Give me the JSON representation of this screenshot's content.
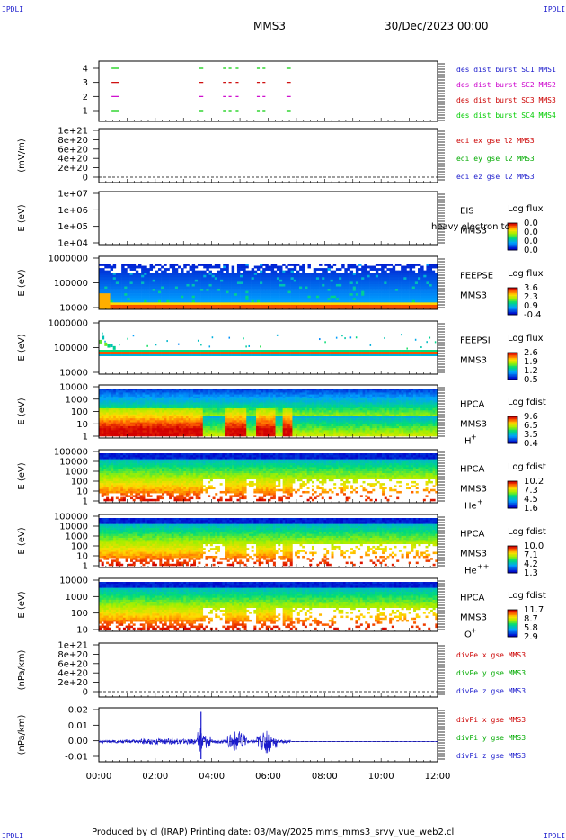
{
  "header": {
    "title": "MMS3",
    "date": "30/Dec/2023 00:00",
    "corner_left": "IPDLI",
    "corner_right": "IPDLI"
  },
  "footer": {
    "text": "Produced by cl (IRAP)   Printing date: 03/May/2025   mms_mms3_srvy_vue_web2.cl"
  },
  "colors": {
    "ticks_yellow": "#ffd700",
    "accent_blue": "#1a1acc"
  },
  "chart_data": {
    "type": "heatmap",
    "x_ticks": [
      "00:00",
      "02:00",
      "04:00",
      "06:00",
      "08:00",
      "10:00",
      "12:00"
    ],
    "xlim_hours": [
      0,
      12
    ],
    "panels": [
      {
        "id": "burst",
        "type": "timeline",
        "yticks": [
          "4",
          "3",
          "2",
          "1"
        ],
        "ylabel": "",
        "series": [
          {
            "name": "des dist burst SC1 MMS1",
            "color": "#00cc00",
            "level": 4
          },
          {
            "name": "des dist burst SC2 MMS2",
            "color": "#cc0000",
            "level": 3
          },
          {
            "name": "des dist burst SC3 MMS3",
            "color": "#cc00cc",
            "level": 2
          },
          {
            "name": "des dist burst SC4 MMS4",
            "color": "#00cc00",
            "level": 1
          }
        ],
        "label_colors": [
          "#1a1acc",
          "#cc00cc",
          "#cc0000",
          "#00cc00"
        ],
        "intervals_hours": [
          [
            0.45,
            0.7
          ],
          [
            3.55,
            3.7
          ],
          [
            4.4,
            4.5
          ],
          [
            4.6,
            4.7
          ],
          [
            4.85,
            4.95
          ],
          [
            5.6,
            5.7
          ],
          [
            5.8,
            5.9
          ],
          [
            6.65,
            6.8
          ]
        ]
      },
      {
        "id": "edi",
        "type": "line",
        "ylabel": "(mV/m)",
        "yticks": [
          "1e+21",
          "8e+20",
          "6e+20",
          "4e+20",
          "2e+20",
          "0"
        ],
        "series": [
          {
            "name": "edi ex gse l2 MMS3",
            "color": "#cc0000"
          },
          {
            "name": "edi ey gse l2 MMS3",
            "color": "#00aa00"
          },
          {
            "name": "edi ez gse l2 MMS3",
            "color": "#1a1acc"
          }
        ]
      },
      {
        "id": "eis",
        "type": "heatmap",
        "ylabel": "E (eV)",
        "yticks": [
          "1e+07",
          "1e+06",
          "1e+05",
          "1e+04"
        ],
        "instrument": "EIS",
        "spacecraft": "MMS3",
        "overlay_text": "heavy electron to",
        "colorbar": {
          "title": "Log flux",
          "values": [
            "0.0",
            "0.0",
            "0.0",
            "0.0"
          ]
        }
      },
      {
        "id": "feepse",
        "type": "heatmap",
        "ylabel": "E (eV)",
        "yticks": [
          "1000000",
          "100000",
          "10000"
        ],
        "instrument": "FEEPSE",
        "spacecraft": "MMS3",
        "colorbar": {
          "title": "Log flux",
          "values": [
            "3.6",
            "2.3",
            "0.9",
            "-0.4"
          ]
        }
      },
      {
        "id": "feepsi",
        "type": "heatmap",
        "ylabel": "E (eV)",
        "yticks": [
          "1000000",
          "100000",
          "10000"
        ],
        "instrument": "FEEPSI",
        "spacecraft": "MMS3",
        "colorbar": {
          "title": "Log flux",
          "values": [
            "2.6",
            "1.9",
            "1.2",
            "0.5"
          ]
        }
      },
      {
        "id": "hpca_h",
        "type": "heatmap",
        "ylabel": "E (eV)",
        "yticks": [
          "10000",
          "1000",
          "100",
          "10",
          "1"
        ],
        "instrument": "HPCA",
        "spacecraft": "MMS3",
        "species": "H",
        "species_sup": "+",
        "colorbar": {
          "title": "Log fdist",
          "values": [
            "9.6",
            "6.5",
            "3.5",
            "0.4"
          ]
        }
      },
      {
        "id": "hpca_he1",
        "type": "heatmap",
        "ylabel": "E (eV)",
        "yticks": [
          "100000",
          "10000",
          "1000",
          "100",
          "10",
          "1"
        ],
        "instrument": "HPCA",
        "spacecraft": "MMS3",
        "species": "He",
        "species_sup": "+",
        "colorbar": {
          "title": "Log fdist",
          "values": [
            "10.2",
            "7.3",
            "4.5",
            "1.6"
          ]
        }
      },
      {
        "id": "hpca_he2",
        "type": "heatmap",
        "ylabel": "E (eV)",
        "yticks": [
          "100000",
          "10000",
          "1000",
          "100",
          "10",
          "1"
        ],
        "instrument": "HPCA",
        "spacecraft": "MMS3",
        "species": "He",
        "species_sup": "++",
        "colorbar": {
          "title": "Log fdist",
          "values": [
            "10.0",
            "7.1",
            "4.2",
            "1.3"
          ]
        }
      },
      {
        "id": "hpca_o",
        "type": "heatmap",
        "ylabel": "E (eV)",
        "yticks": [
          "10000",
          "1000",
          "100",
          "10"
        ],
        "instrument": "HPCA",
        "spacecraft": "MMS3",
        "species": "O",
        "species_sup": "+",
        "colorbar": {
          "title": "Log fdist",
          "values": [
            "11.7",
            "8.7",
            "5.8",
            "2.9"
          ]
        }
      },
      {
        "id": "divpe",
        "type": "line",
        "ylabel": "(nPa/km)",
        "yticks": [
          "1e+21",
          "8e+20",
          "6e+20",
          "4e+20",
          "2e+20",
          "0"
        ],
        "series": [
          {
            "name": "divPe x gse MMS3",
            "color": "#cc0000"
          },
          {
            "name": "divPe y gse MMS3",
            "color": "#00aa00"
          },
          {
            "name": "divPe z gse MMS3",
            "color": "#1a1acc"
          }
        ]
      },
      {
        "id": "divpi",
        "type": "line",
        "ylabel": "(nPa/km)",
        "yticks": [
          "0.02",
          "0.01",
          "0.00",
          "-0.01"
        ],
        "ylim": [
          -0.015,
          0.025
        ],
        "series": [
          {
            "name": "divPi x gse MMS3",
            "color": "#cc0000"
          },
          {
            "name": "divPi y gse MMS3",
            "color": "#00aa00"
          },
          {
            "name": "divPi z gse MMS3",
            "color": "#1a1acc"
          }
        ],
        "active_hours": [
          0,
          6.8
        ],
        "spike_hours": [
          3.6,
          4.9,
          5.95
        ]
      }
    ]
  }
}
